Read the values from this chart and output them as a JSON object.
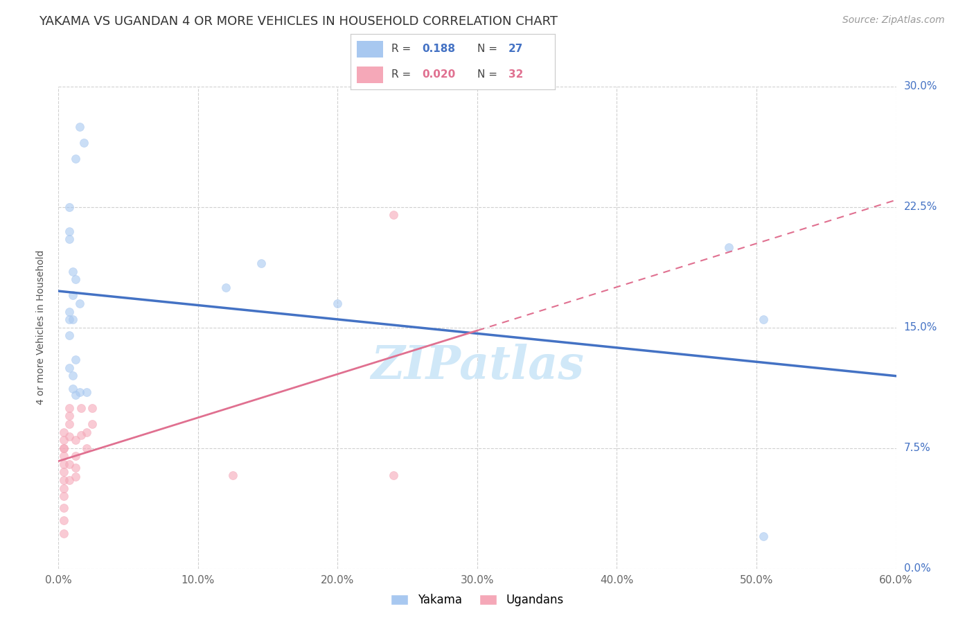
{
  "title": "YAKAMA VS UGANDAN 4 OR MORE VEHICLES IN HOUSEHOLD CORRELATION CHART",
  "source": "Source: ZipAtlas.com",
  "ylabel": "4 or more Vehicles in Household",
  "xlim": [
    0.0,
    0.6
  ],
  "ylim": [
    0.0,
    0.3
  ],
  "xlabel_vals": [
    0.0,
    0.1,
    0.2,
    0.3,
    0.4,
    0.5,
    0.6
  ],
  "ylabel_vals": [
    0.0,
    0.075,
    0.15,
    0.225,
    0.3
  ],
  "xlabel_ticks": [
    "0.0%",
    "10.0%",
    "20.0%",
    "30.0%",
    "40.0%",
    "50.0%",
    "60.0%"
  ],
  "ylabel_ticks": [
    "0.0%",
    "7.5%",
    "15.0%",
    "22.5%",
    "30.0%"
  ],
  "legend_R_yakama": "0.188",
  "legend_N_yakama": "27",
  "legend_R_ugandan": "0.020",
  "legend_N_ugandan": "32",
  "yakama_color": "#A8C8F0",
  "ugandan_color": "#F5A8B8",
  "trendline_yakama_color": "#4472C4",
  "trendline_ugandan_color": "#E07090",
  "background_color": "#ffffff",
  "grid_color": "#d0d0d0",
  "watermark_color": "#d0e8f8",
  "title_fontsize": 13,
  "axis_label_fontsize": 10,
  "tick_fontsize": 11,
  "source_fontsize": 10,
  "yakama_x": [
    0.008,
    0.012,
    0.015,
    0.018,
    0.008,
    0.01,
    0.012,
    0.015,
    0.01,
    0.008,
    0.008,
    0.008,
    0.012,
    0.008,
    0.015,
    0.02,
    0.12,
    0.145,
    0.2,
    0.01,
    0.008,
    0.01,
    0.48,
    0.505,
    0.505,
    0.01,
    0.012
  ],
  "yakama_y": [
    0.21,
    0.255,
    0.275,
    0.265,
    0.205,
    0.185,
    0.18,
    0.165,
    0.17,
    0.16,
    0.155,
    0.145,
    0.13,
    0.125,
    0.11,
    0.11,
    0.175,
    0.19,
    0.165,
    0.155,
    0.225,
    0.112,
    0.2,
    0.155,
    0.02,
    0.12,
    0.108
  ],
  "ugandan_x": [
    0.004,
    0.004,
    0.004,
    0.004,
    0.004,
    0.004,
    0.004,
    0.004,
    0.004,
    0.004,
    0.004,
    0.004,
    0.004,
    0.008,
    0.008,
    0.008,
    0.008,
    0.008,
    0.008,
    0.012,
    0.012,
    0.012,
    0.012,
    0.016,
    0.016,
    0.02,
    0.02,
    0.024,
    0.024,
    0.125,
    0.24,
    0.24
  ],
  "ugandan_y": [
    0.085,
    0.08,
    0.075,
    0.07,
    0.065,
    0.06,
    0.055,
    0.05,
    0.045,
    0.038,
    0.03,
    0.022,
    0.075,
    0.1,
    0.095,
    0.09,
    0.065,
    0.055,
    0.082,
    0.08,
    0.07,
    0.063,
    0.057,
    0.1,
    0.083,
    0.085,
    0.075,
    0.1,
    0.09,
    0.058,
    0.058,
    0.22
  ],
  "marker_size": 75,
  "marker_alpha": 0.6
}
